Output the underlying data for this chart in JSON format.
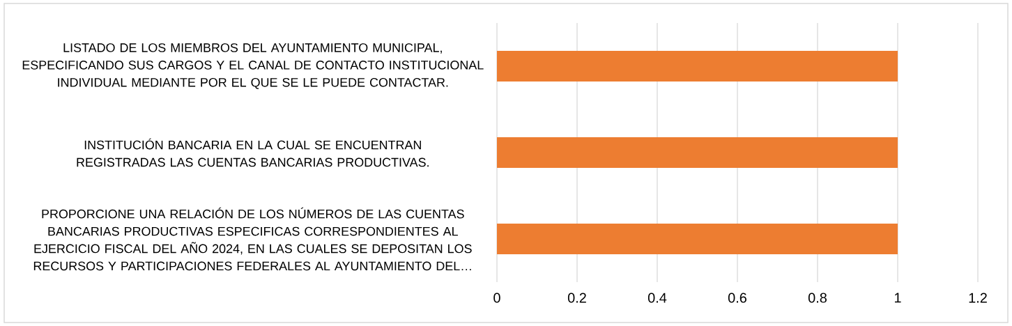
{
  "chart_data": {
    "type": "bar",
    "orientation": "horizontal",
    "categories": [
      "LISTADO DE LOS MIEMBROS DEL AYUNTAMIENTO MUNICIPAL, ESPECIFICANDO SUS CARGOS Y EL CANAL DE CONTACTO INSTITUCIONAL INDIVIDUAL MEDIANTE POR EL QUE SE LE PUEDE CONTACTAR.",
      "INSTITUCIÓN BANCARIA EN LA CUAL SE ENCUENTRAN REGISTRADAS LAS CUENTAS BANCARIAS PRODUCTIVAS.",
      "PROPORCIONE UNA RELACIÓN DE LOS NÚMEROS DE LAS CUENTAS BANCARIAS PRODUCTIVAS ESPECIFICAS CORRESPONDIENTES AL EJERCICIO FISCAL DEL AÑO 2024, EN LAS CUALES SE DEPOSITAN LOS RECURSOS Y PARTICIPACIONES FEDERALES AL AYUNTAMIENTO DEL…"
    ],
    "values": [
      1,
      1,
      1
    ],
    "color": "#ed7d31",
    "xlim": [
      0,
      1.2
    ],
    "xticks": [
      0,
      0.2,
      0.4,
      0.6,
      0.8,
      1,
      1.2
    ],
    "grid": "x"
  }
}
